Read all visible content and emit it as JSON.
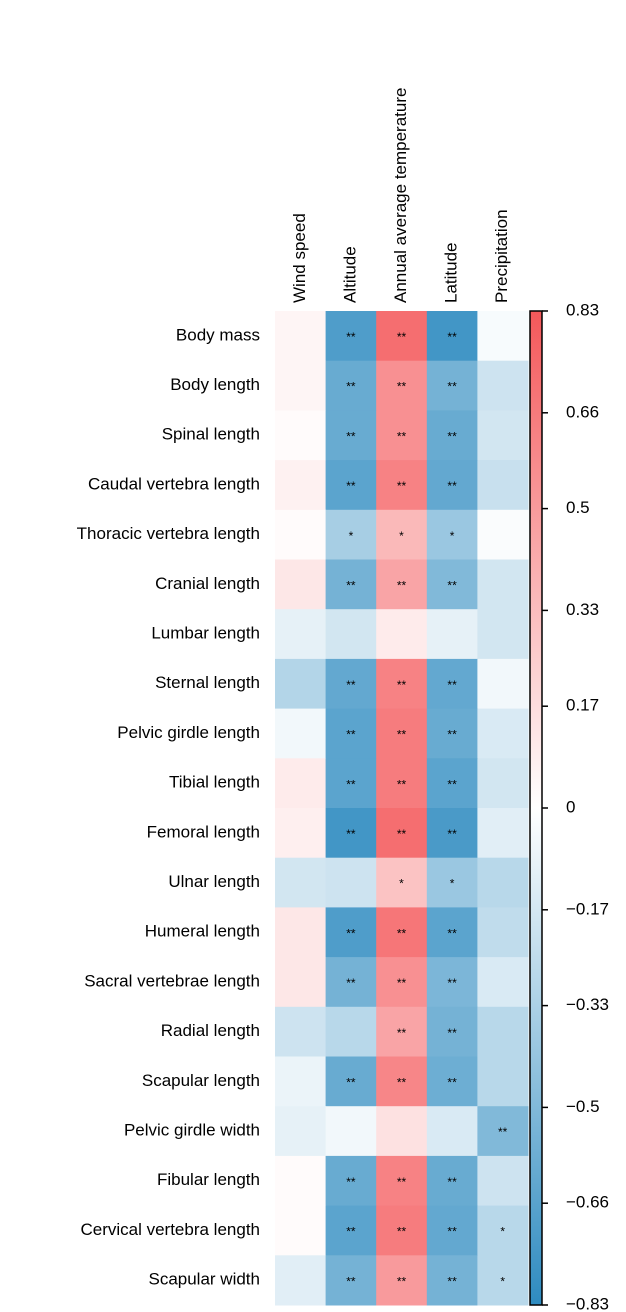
{
  "chart_data": {
    "type": "heatmap",
    "x": [
      "Wind speed",
      "Altitude",
      "Annual average temperature",
      "Latitude",
      "Precipitation"
    ],
    "y": [
      "Body mass",
      "Body length",
      "Spinal length",
      "Caudal vertebra length",
      "Thoracic vertebra length",
      "Cranial length",
      "Lumbar length",
      "Sternal length",
      "Pelvic girdle length",
      "Tibial length",
      "Femoral length",
      "Ulnar length",
      "Humeral length",
      "Sacral vertebrae length",
      "Radial length",
      "Scapular length",
      "Pelvic girdle width",
      "Fibular length",
      "Cervical vertebra length",
      "Scapular width"
    ],
    "values": [
      [
        0.05,
        -0.7,
        0.72,
        -0.75,
        -0.03
      ],
      [
        0.05,
        -0.6,
        0.55,
        -0.55,
        -0.2
      ],
      [
        0.02,
        -0.6,
        0.55,
        -0.6,
        -0.18
      ],
      [
        0.07,
        -0.65,
        0.62,
        -0.62,
        -0.22
      ],
      [
        0.02,
        -0.35,
        0.35,
        -0.4,
        -0.02
      ],
      [
        0.12,
        -0.55,
        0.45,
        -0.5,
        -0.18
      ],
      [
        -0.1,
        -0.18,
        0.1,
        -0.1,
        -0.18
      ],
      [
        -0.3,
        -0.62,
        0.62,
        -0.62,
        -0.05
      ],
      [
        -0.05,
        -0.65,
        0.65,
        -0.6,
        -0.15
      ],
      [
        0.1,
        -0.65,
        0.65,
        -0.65,
        -0.18
      ],
      [
        0.08,
        -0.75,
        0.72,
        -0.72,
        -0.12
      ],
      [
        -0.18,
        -0.2,
        0.3,
        -0.4,
        -0.28
      ],
      [
        0.12,
        -0.7,
        0.68,
        -0.65,
        -0.25
      ],
      [
        0.12,
        -0.55,
        0.55,
        -0.52,
        -0.15
      ],
      [
        -0.2,
        -0.28,
        0.45,
        -0.55,
        -0.28
      ],
      [
        -0.08,
        -0.6,
        0.6,
        -0.58,
        -0.28
      ],
      [
        -0.1,
        -0.05,
        0.15,
        -0.15,
        -0.5
      ],
      [
        0.02,
        -0.6,
        0.62,
        -0.6,
        -0.2
      ],
      [
        0.02,
        -0.65,
        0.65,
        -0.62,
        -0.28
      ],
      [
        -0.12,
        -0.55,
        0.5,
        -0.55,
        -0.28
      ]
    ],
    "labels": [
      [
        null,
        "**",
        "**",
        "**",
        null
      ],
      [
        null,
        "**",
        "**",
        "**",
        null
      ],
      [
        null,
        "**",
        "**",
        "**",
        null
      ],
      [
        null,
        "**",
        "**",
        "**",
        null
      ],
      [
        null,
        "*",
        "*",
        "*",
        null
      ],
      [
        null,
        "**",
        "**",
        "**",
        null
      ],
      [
        null,
        null,
        null,
        null,
        null
      ],
      [
        null,
        "**",
        "**",
        "**",
        null
      ],
      [
        null,
        "**",
        "**",
        "**",
        null
      ],
      [
        null,
        "**",
        "**",
        "**",
        null
      ],
      [
        null,
        "**",
        "**",
        "**",
        null
      ],
      [
        null,
        null,
        "*",
        "*",
        null
      ],
      [
        null,
        "**",
        "**",
        "**",
        null
      ],
      [
        null,
        "**",
        "**",
        "**",
        null
      ],
      [
        null,
        null,
        "**",
        "**",
        null
      ],
      [
        null,
        "**",
        "**",
        "**",
        null
      ],
      [
        null,
        null,
        null,
        null,
        "**"
      ],
      [
        null,
        "**",
        "**",
        "**",
        null
      ],
      [
        null,
        "**",
        "**",
        "**",
        "*"
      ],
      [
        null,
        "**",
        "**",
        "**",
        "*"
      ]
    ],
    "zlim": [
      -0.83,
      0.83
    ],
    "zticks": [
      0.83,
      0.66,
      0.5,
      0.33,
      0.17,
      0,
      {
        "value": -0.17,
        "label": "−0.17"
      },
      {
        "value": -0.33,
        "label": "−0.33"
      },
      {
        "value": -0.5,
        "label": "−0.5"
      },
      {
        "value": -0.66,
        "label": "−0.66"
      },
      {
        "value": -0.83,
        "label": "−0.83"
      }
    ],
    "colors": [
      "#2e8bc0",
      "#ffffff",
      "#f4585a"
    ]
  }
}
